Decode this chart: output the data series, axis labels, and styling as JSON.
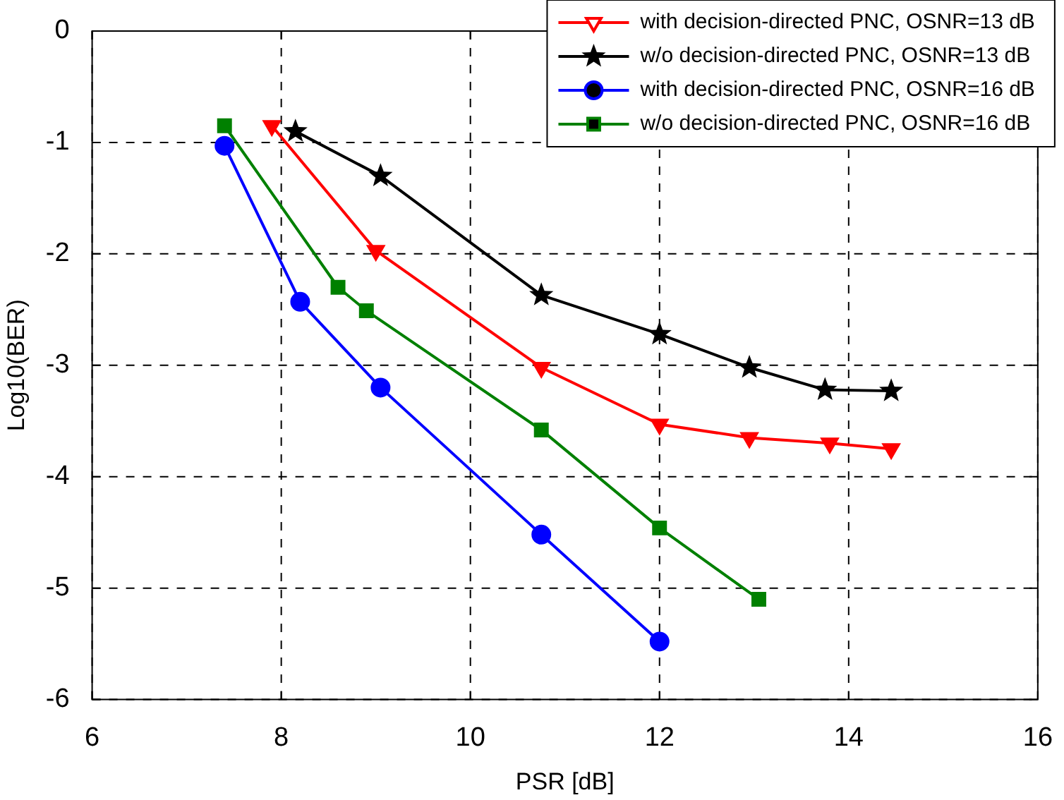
{
  "chart_data": {
    "type": "line",
    "xlabel": "PSR [dB]",
    "ylabel": "Log10(BER)",
    "xlim": [
      6,
      16
    ],
    "xticks": [
      6,
      8,
      10,
      12,
      14,
      16
    ],
    "ylim": [
      -6,
      0
    ],
    "yticks": [
      -6,
      -5,
      -4,
      -3,
      -2,
      -1,
      0
    ],
    "grid": true,
    "legend": "top right",
    "line_style": "solid",
    "series": [
      {
        "name": "with decision-directed PNC, OSNR=13 dB",
        "color": "#ff0000",
        "marker": "triangle",
        "x": [
          7.9,
          9.0,
          10.75,
          12.0,
          12.95,
          13.8,
          14.45
        ],
        "values": [
          -0.85,
          -1.97,
          -3.02,
          -3.53,
          -3.65,
          -3.7,
          -3.75
        ]
      },
      {
        "name": "w/o decision-directed PNC, OSNR=13 dB",
        "color": "#000000",
        "marker": "star",
        "x": [
          8.15,
          9.05,
          10.75,
          12.0,
          12.95,
          13.75,
          14.45
        ],
        "values": [
          -0.9,
          -1.3,
          -2.37,
          -2.72,
          -3.02,
          -3.22,
          -3.23
        ]
      },
      {
        "name": "with decision-directed PNC, OSNR=16 dB",
        "color": "#0000ff",
        "marker": "circle",
        "x": [
          7.4,
          8.2,
          9.05,
          10.75,
          12.0
        ],
        "values": [
          -1.03,
          -2.43,
          -3.2,
          -4.52,
          -5.48
        ]
      },
      {
        "name": "w/o decision-directed PNC, OSNR=16 dB",
        "color": "#008000",
        "marker": "square",
        "x": [
          7.4,
          8.6,
          8.9,
          10.75,
          12.0,
          13.05
        ],
        "values": [
          -0.85,
          -2.3,
          -2.51,
          -3.58,
          -4.46,
          -5.1
        ]
      }
    ]
  }
}
